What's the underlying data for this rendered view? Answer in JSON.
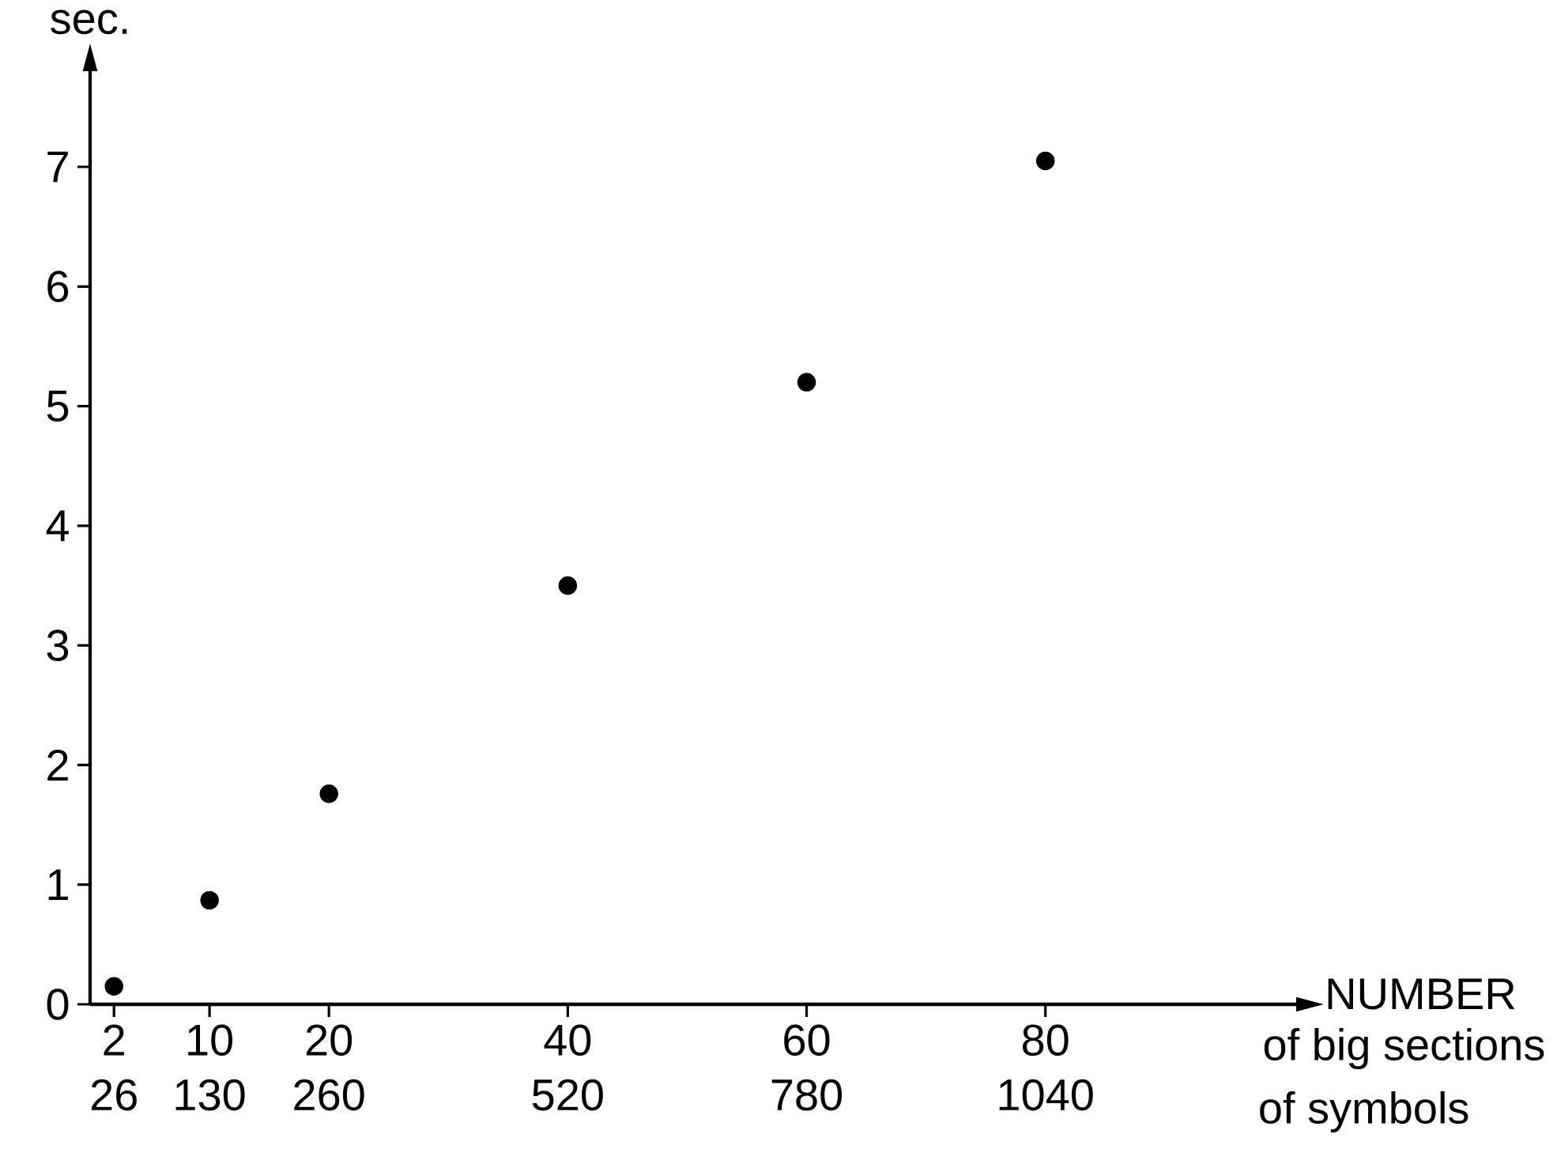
{
  "chart_data": {
    "type": "scatter",
    "xlabel": "NUMBER",
    "x2label": "of symbols",
    "ylabel": "sec.",
    "annotations": [
      "of big sections"
    ],
    "x": [
      2,
      10,
      20,
      40,
      60,
      80
    ],
    "series": [
      {
        "color": "#000000",
        "values": [
          0.15,
          0.87,
          1.76,
          3.5,
          5.2,
          7.05
        ]
      }
    ],
    "xlim": [
      0,
      101
    ],
    "xticks": [
      2,
      10,
      20,
      40,
      60,
      80
    ],
    "x2lim": [
      0,
      1313
    ],
    "x2ticks": [
      26,
      130,
      260,
      520,
      780,
      1040
    ],
    "ylim": [
      0,
      7.8
    ],
    "yticks": [
      0,
      1,
      2,
      3,
      4,
      5,
      6,
      7
    ],
    "marker": "circle"
  }
}
